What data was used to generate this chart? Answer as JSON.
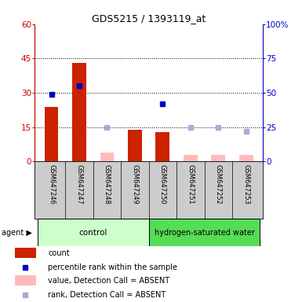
{
  "title": "GDS5215 / 1393119_at",
  "samples": [
    "GSM647246",
    "GSM647247",
    "GSM647248",
    "GSM647249",
    "GSM647250",
    "GSM647251",
    "GSM647252",
    "GSM647253"
  ],
  "bar_values_present": [
    24,
    43,
    null,
    14,
    13,
    null,
    null,
    null
  ],
  "bar_values_absent": [
    null,
    null,
    4,
    null,
    null,
    3,
    3,
    3
  ],
  "rank_present": [
    49,
    55,
    null,
    null,
    42,
    null,
    null,
    null
  ],
  "rank_absent": [
    null,
    null,
    25,
    null,
    null,
    25,
    25,
    22
  ],
  "bar_color_present": "#cc2200",
  "bar_color_absent": "#ffbbbb",
  "rank_color_present": "#0000cc",
  "rank_color_absent": "#aaaadd",
  "left_color": "#cc0000",
  "right_color": "#0000cc",
  "yticks_left": [
    0,
    15,
    30,
    45,
    60
  ],
  "yticks_right": [
    0,
    25,
    50,
    75,
    100
  ],
  "ytick_labels_right": [
    "0",
    "25",
    "50",
    "75",
    "100%"
  ],
  "grid_lines": [
    15,
    30,
    45
  ],
  "ctrl_color": "#ccffcc",
  "hydro_color": "#55dd55",
  "group_divider": 3.5,
  "n_samples": 8,
  "figwidth": 3.85,
  "figheight": 3.84,
  "dpi": 100
}
